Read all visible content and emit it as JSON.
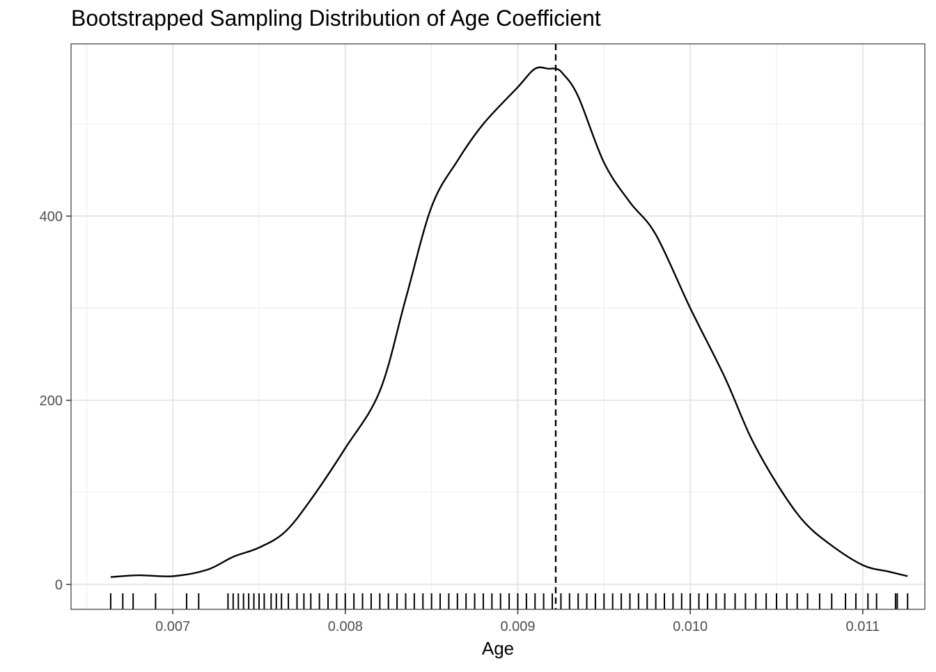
{
  "chart_data": {
    "type": "area",
    "title": "Bootstrapped Sampling Distribution of Age Coefficient",
    "xlabel": "Age",
    "ylabel": "",
    "xlim": [
      0.00641,
      0.01136
    ],
    "ylim": [
      -27,
      587
    ],
    "x_ticks": [
      0.007,
      0.008,
      0.009,
      0.01,
      0.011
    ],
    "x_tick_labels": [
      "0.007",
      "0.008",
      "0.009",
      "0.010",
      "0.011"
    ],
    "y_ticks": [
      0,
      200,
      400
    ],
    "y_tick_labels": [
      "0",
      "200",
      "400"
    ],
    "grid": true,
    "legend": "none",
    "line_color": "#000000",
    "reference_line": {
      "x": 0.00922,
      "style": "dashed"
    },
    "density": {
      "x": [
        0.00664,
        0.0068,
        0.007,
        0.0072,
        0.00735,
        0.0075,
        0.00765,
        0.0078,
        0.008,
        0.0082,
        0.00835,
        0.0085,
        0.00865,
        0.0088,
        0.009,
        0.0091,
        0.00918,
        0.00922,
        0.00926,
        0.00935,
        0.0095,
        0.00965,
        0.0098,
        0.01,
        0.0102,
        0.01035,
        0.0105,
        0.01065,
        0.0108,
        0.011,
        0.01115,
        0.01126
      ],
      "y": [
        8,
        10,
        9,
        16,
        30,
        40,
        57,
        92,
        148,
        210,
        310,
        410,
        460,
        500,
        540,
        560,
        560,
        560,
        555,
        530,
        458,
        415,
        380,
        300,
        225,
        160,
        110,
        70,
        45,
        21,
        14,
        9
      ]
    },
    "rug_x": [
      0.00664,
      0.00671,
      0.00677,
      0.0069,
      0.00708,
      0.00715,
      0.00732,
      0.00735,
      0.00738,
      0.00741,
      0.00744,
      0.00747,
      0.0075,
      0.00753,
      0.00757,
      0.0076,
      0.00763,
      0.00767,
      0.00772,
      0.00776,
      0.0078,
      0.00785,
      0.0079,
      0.00795,
      0.008,
      0.00805,
      0.0081,
      0.00815,
      0.0082,
      0.00825,
      0.0083,
      0.00835,
      0.0084,
      0.00845,
      0.0085,
      0.00855,
      0.0086,
      0.00865,
      0.0087,
      0.00875,
      0.0088,
      0.00885,
      0.0089,
      0.00895,
      0.009,
      0.00905,
      0.0091,
      0.00915,
      0.0092,
      0.00925,
      0.0093,
      0.00935,
      0.0094,
      0.00945,
      0.0095,
      0.00955,
      0.0096,
      0.00965,
      0.0097,
      0.00975,
      0.0098,
      0.00985,
      0.0099,
      0.00995,
      0.01,
      0.01005,
      0.0101,
      0.01015,
      0.0102,
      0.01026,
      0.01032,
      0.01038,
      0.01044,
      0.0105,
      0.01056,
      0.01062,
      0.01068,
      0.01075,
      0.01082,
      0.0109,
      0.01096,
      0.01103,
      0.01108,
      0.01119,
      0.0112,
      0.01126
    ]
  }
}
